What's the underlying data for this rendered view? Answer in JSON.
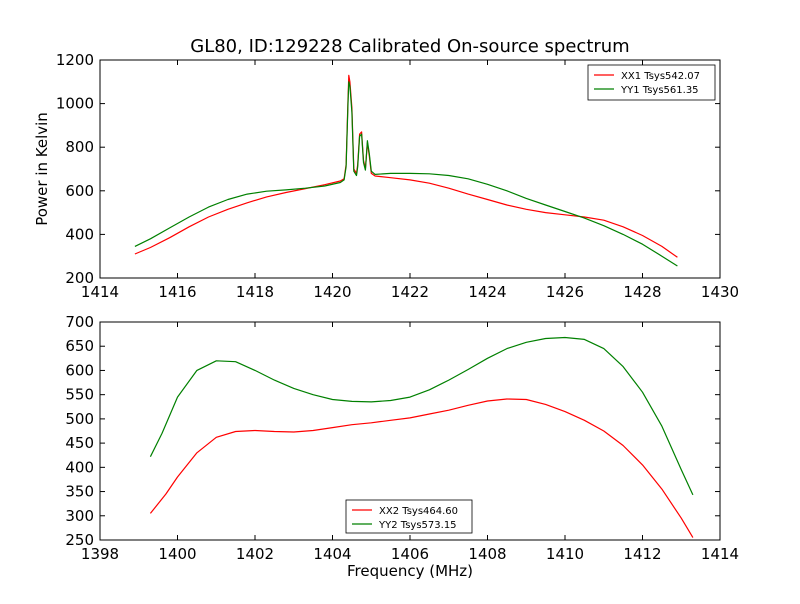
{
  "figure": {
    "title": "GL80, ID:129228 Calibrated On-source spectrum",
    "xlabel": "Frequency (MHz)",
    "ylabel_top": "Power in Kelvin"
  },
  "colors": {
    "red": "#ff0000",
    "green": "#008000",
    "axis": "#000000"
  },
  "chart_data": [
    {
      "type": "line",
      "title": "GL80, ID:129228 Calibrated On-source spectrum",
      "xlabel": "",
      "ylabel": "Power in Kelvin",
      "xlim": [
        1414,
        1430
      ],
      "ylim": [
        200,
        1200
      ],
      "xticks": [
        1414,
        1416,
        1418,
        1420,
        1422,
        1424,
        1426,
        1428,
        1430
      ],
      "yticks": [
        200,
        400,
        600,
        800,
        1000,
        1200
      ],
      "legend_placement": "top-right",
      "series": [
        {
          "name": "XX1 Tsys542.07",
          "color": "#ff0000",
          "points": [
            [
              1414.9,
              310
            ],
            [
              1415.3,
              340
            ],
            [
              1415.8,
              385
            ],
            [
              1416.3,
              435
            ],
            [
              1416.8,
              480
            ],
            [
              1417.3,
              515
            ],
            [
              1417.8,
              545
            ],
            [
              1418.3,
              572
            ],
            [
              1418.8,
              592
            ],
            [
              1419.3,
              610
            ],
            [
              1419.8,
              628
            ],
            [
              1420.2,
              645
            ],
            [
              1420.3,
              655
            ],
            [
              1420.35,
              720
            ],
            [
              1420.4,
              1020
            ],
            [
              1420.42,
              1130
            ],
            [
              1420.45,
              1100
            ],
            [
              1420.5,
              980
            ],
            [
              1420.55,
              700
            ],
            [
              1420.62,
              680
            ],
            [
              1420.65,
              720
            ],
            [
              1420.7,
              860
            ],
            [
              1420.75,
              870
            ],
            [
              1420.8,
              740
            ],
            [
              1420.85,
              700
            ],
            [
              1420.9,
              820
            ],
            [
              1420.95,
              760
            ],
            [
              1421.0,
              680
            ],
            [
              1421.1,
              668
            ],
            [
              1421.5,
              660
            ],
            [
              1422.0,
              650
            ],
            [
              1422.5,
              635
            ],
            [
              1423.0,
              612
            ],
            [
              1423.5,
              585
            ],
            [
              1424.0,
              560
            ],
            [
              1424.5,
              535
            ],
            [
              1425.0,
              515
            ],
            [
              1425.5,
              500
            ],
            [
              1426.0,
              490
            ],
            [
              1426.5,
              480
            ],
            [
              1427.0,
              465
            ],
            [
              1427.5,
              435
            ],
            [
              1428.0,
              395
            ],
            [
              1428.5,
              345
            ],
            [
              1428.9,
              295
            ]
          ]
        },
        {
          "name": "YY1 Tsys561.35",
          "color": "#008000",
          "points": [
            [
              1414.9,
              345
            ],
            [
              1415.3,
              380
            ],
            [
              1415.8,
              430
            ],
            [
              1416.3,
              480
            ],
            [
              1416.8,
              525
            ],
            [
              1417.3,
              560
            ],
            [
              1417.8,
              585
            ],
            [
              1418.3,
              598
            ],
            [
              1418.8,
              604
            ],
            [
              1419.3,
              612
            ],
            [
              1419.8,
              622
            ],
            [
              1420.2,
              638
            ],
            [
              1420.3,
              650
            ],
            [
              1420.35,
              710
            ],
            [
              1420.4,
              1000
            ],
            [
              1420.42,
              1100
            ],
            [
              1420.45,
              1080
            ],
            [
              1420.5,
              960
            ],
            [
              1420.55,
              690
            ],
            [
              1420.62,
              670
            ],
            [
              1420.65,
              710
            ],
            [
              1420.7,
              850
            ],
            [
              1420.75,
              860
            ],
            [
              1420.8,
              730
            ],
            [
              1420.85,
              695
            ],
            [
              1420.9,
              830
            ],
            [
              1420.95,
              770
            ],
            [
              1421.0,
              690
            ],
            [
              1421.1,
              675
            ],
            [
              1421.5,
              680
            ],
            [
              1422.0,
              680
            ],
            [
              1422.5,
              678
            ],
            [
              1423.0,
              670
            ],
            [
              1423.5,
              655
            ],
            [
              1424.0,
              630
            ],
            [
              1424.5,
              600
            ],
            [
              1425.0,
              565
            ],
            [
              1425.5,
              535
            ],
            [
              1426.0,
              505
            ],
            [
              1426.5,
              475
            ],
            [
              1427.0,
              440
            ],
            [
              1427.5,
              400
            ],
            [
              1428.0,
              355
            ],
            [
              1428.5,
              300
            ],
            [
              1428.9,
              255
            ]
          ]
        }
      ]
    },
    {
      "type": "line",
      "title": "",
      "xlabel": "Frequency (MHz)",
      "ylabel": "",
      "xlim": [
        1398,
        1414
      ],
      "ylim": [
        250,
        700
      ],
      "xticks": [
        1398,
        1400,
        1402,
        1404,
        1406,
        1408,
        1410,
        1412,
        1414
      ],
      "yticks": [
        250,
        300,
        350,
        400,
        450,
        500,
        550,
        600,
        650,
        700
      ],
      "legend_placement": "bottom-center",
      "series": [
        {
          "name": "XX2 Tsys464.60",
          "color": "#ff0000",
          "points": [
            [
              1399.3,
              305
            ],
            [
              1399.7,
              345
            ],
            [
              1400.0,
              380
            ],
            [
              1400.5,
              430
            ],
            [
              1401.0,
              462
            ],
            [
              1401.5,
              474
            ],
            [
              1402.0,
              476
            ],
            [
              1402.5,
              474
            ],
            [
              1403.0,
              473
            ],
            [
              1403.5,
              476
            ],
            [
              1404.0,
              482
            ],
            [
              1404.5,
              488
            ],
            [
              1405.0,
              492
            ],
            [
              1405.5,
              497
            ],
            [
              1406.0,
              502
            ],
            [
              1406.5,
              510
            ],
            [
              1407.0,
              518
            ],
            [
              1407.5,
              528
            ],
            [
              1408.0,
              537
            ],
            [
              1408.5,
              541
            ],
            [
              1409.0,
              540
            ],
            [
              1409.5,
              530
            ],
            [
              1410.0,
              515
            ],
            [
              1410.5,
              497
            ],
            [
              1411.0,
              475
            ],
            [
              1411.5,
              445
            ],
            [
              1412.0,
              405
            ],
            [
              1412.5,
              355
            ],
            [
              1413.0,
              295
            ],
            [
              1413.3,
              255
            ]
          ]
        },
        {
          "name": "YY2 Tsys573.15",
          "color": "#008000",
          "points": [
            [
              1399.3,
              422
            ],
            [
              1399.6,
              470
            ],
            [
              1400.0,
              545
            ],
            [
              1400.5,
              600
            ],
            [
              1401.0,
              620
            ],
            [
              1401.5,
              618
            ],
            [
              1402.0,
              600
            ],
            [
              1402.5,
              580
            ],
            [
              1403.0,
              563
            ],
            [
              1403.5,
              550
            ],
            [
              1404.0,
              540
            ],
            [
              1404.5,
              536
            ],
            [
              1405.0,
              535
            ],
            [
              1405.5,
              538
            ],
            [
              1406.0,
              545
            ],
            [
              1406.5,
              560
            ],
            [
              1407.0,
              580
            ],
            [
              1407.5,
              602
            ],
            [
              1408.0,
              625
            ],
            [
              1408.5,
              645
            ],
            [
              1409.0,
              658
            ],
            [
              1409.5,
              666
            ],
            [
              1410.0,
              668
            ],
            [
              1410.5,
              664
            ],
            [
              1411.0,
              645
            ],
            [
              1411.5,
              608
            ],
            [
              1412.0,
              555
            ],
            [
              1412.5,
              485
            ],
            [
              1413.0,
              395
            ],
            [
              1413.3,
              343
            ]
          ]
        }
      ]
    }
  ]
}
